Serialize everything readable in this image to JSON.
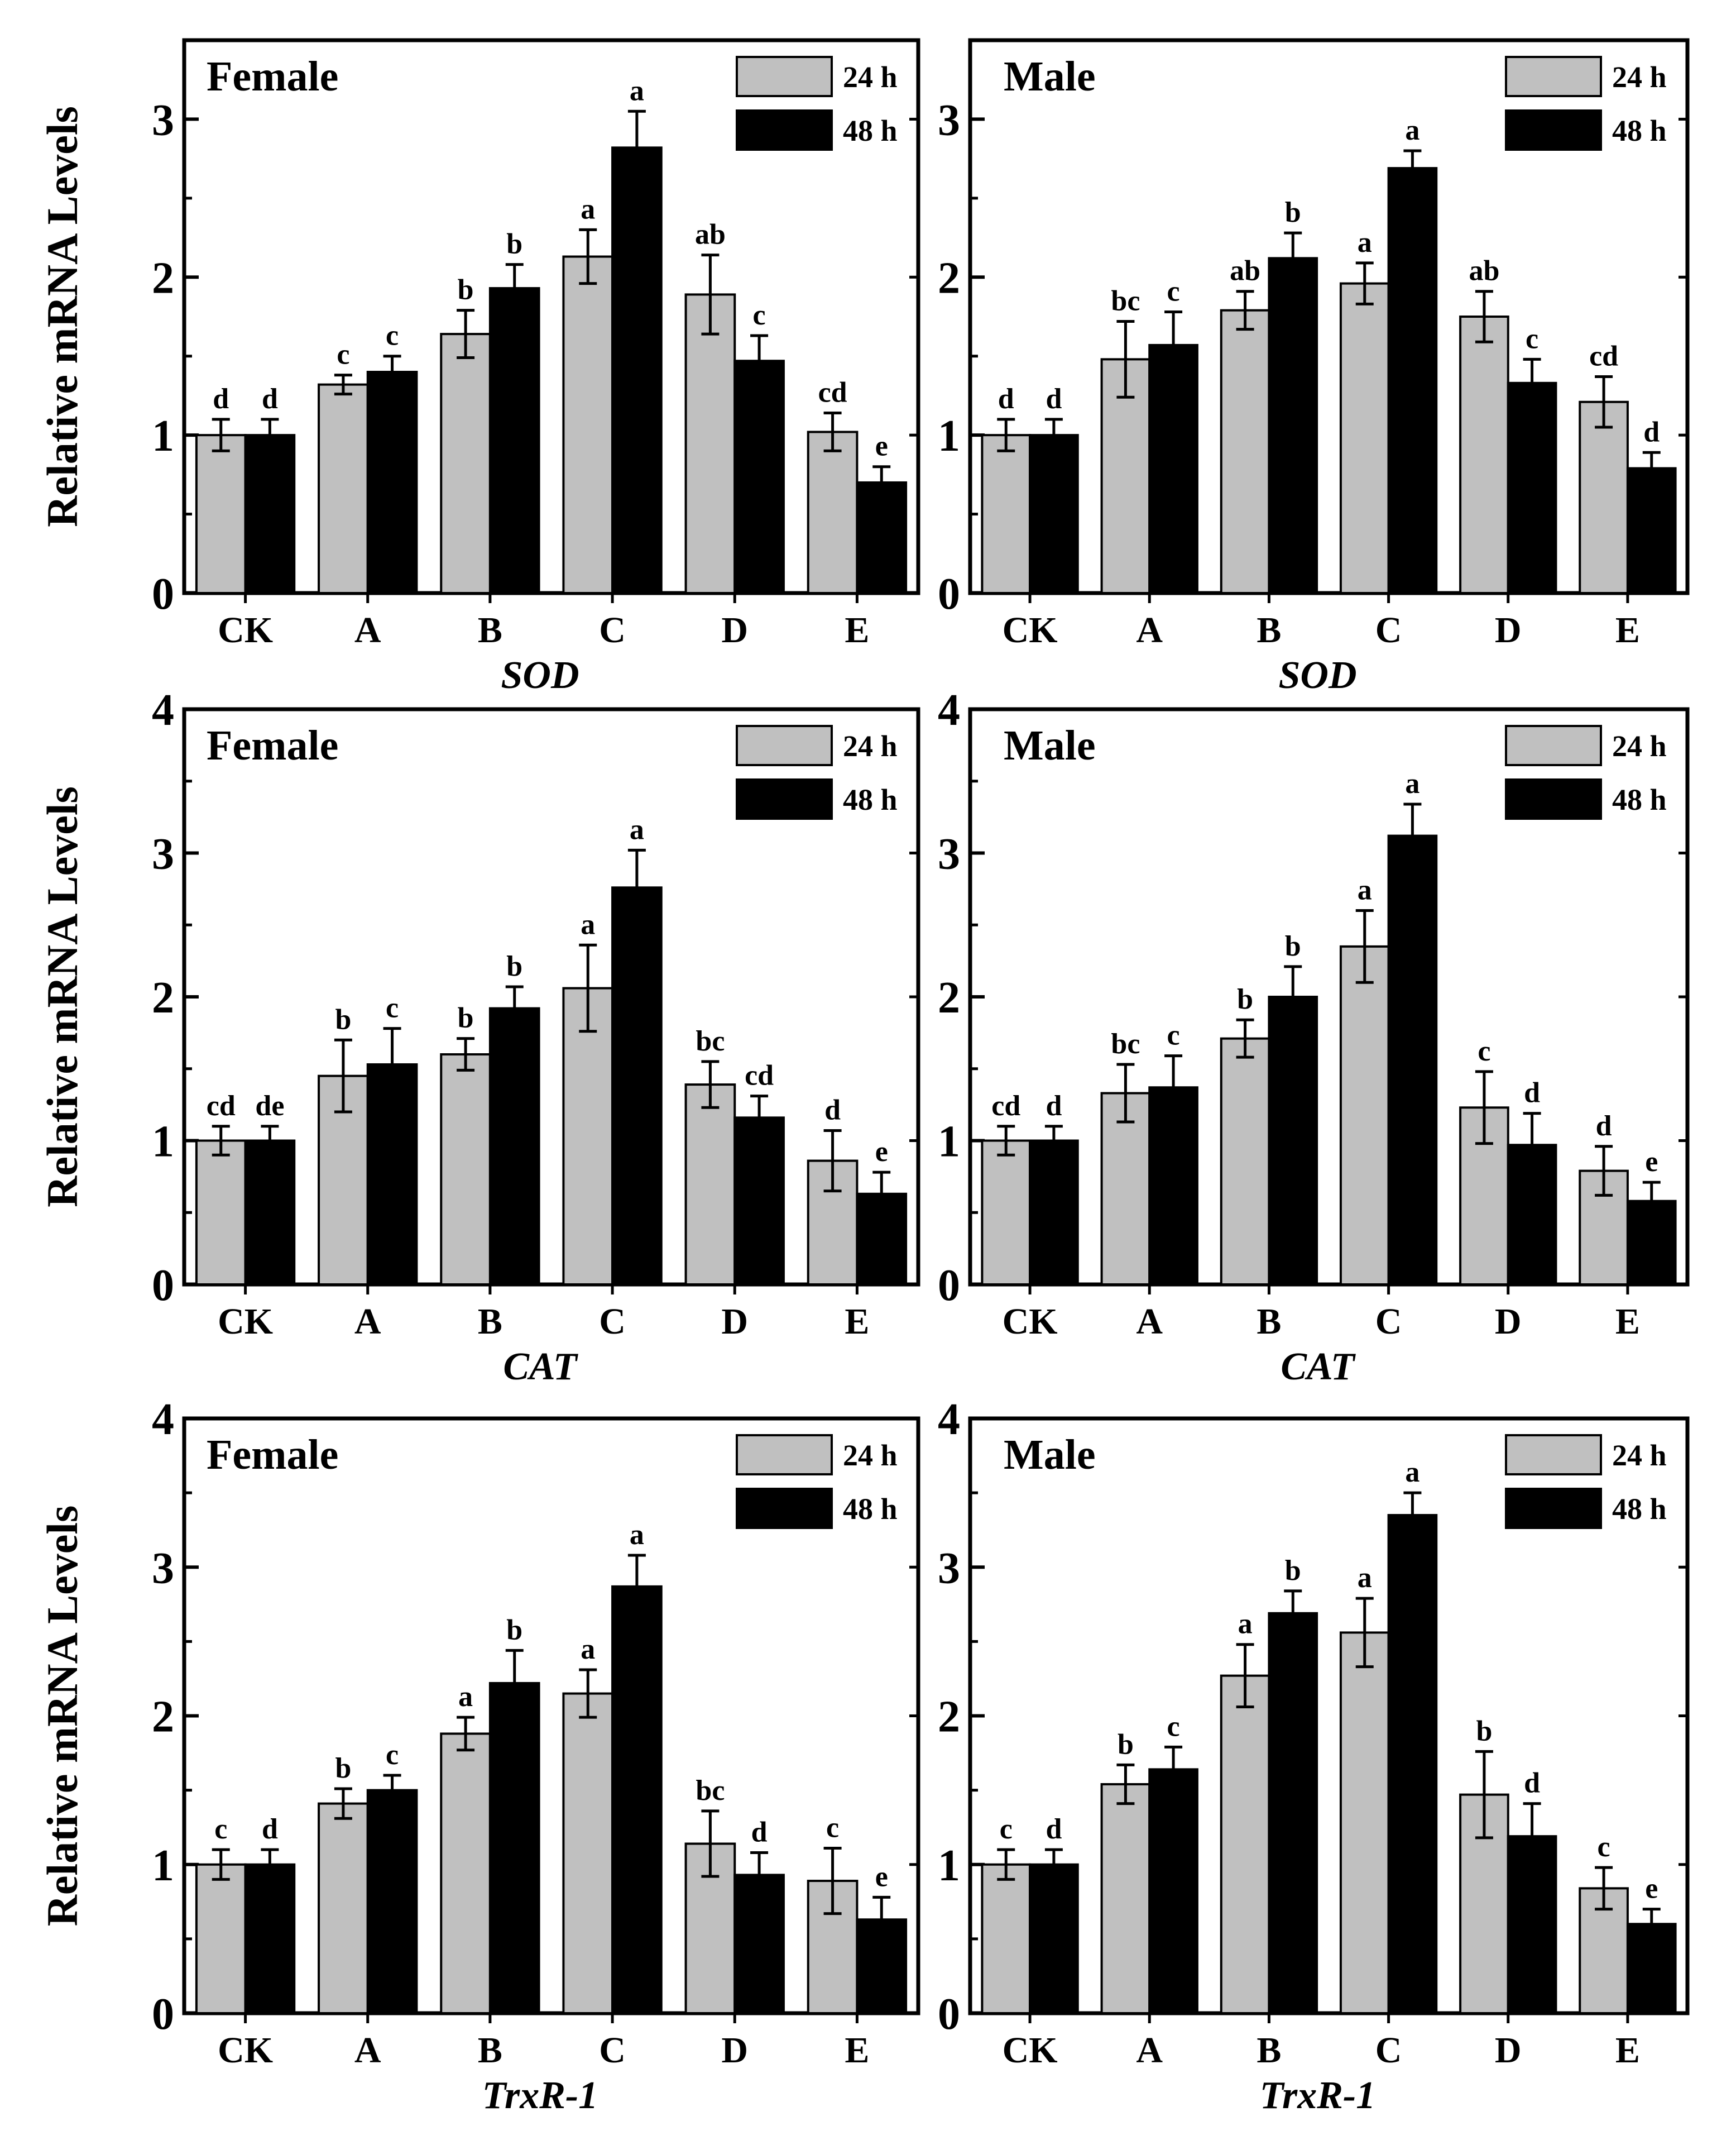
{
  "colors": {
    "h24": "#c0c0c0",
    "h48": "#000000",
    "frame": "#000000"
  },
  "y_axis_label": "Relative mRNA Levels",
  "legend": [
    "24 h",
    "48 h"
  ],
  "chart_data": [
    {
      "type": "bar",
      "title": "Female",
      "gene": "SOD",
      "xlabel": "SOD",
      "ylabel": "Relative mRNA Levels",
      "categories": [
        "CK",
        "A",
        "B",
        "C",
        "D",
        "E"
      ],
      "ylim": [
        0,
        3.5
      ],
      "yticks": [
        0,
        1,
        2,
        3
      ],
      "series": [
        {
          "name": "24 h",
          "values": [
            1.0,
            1.32,
            1.64,
            2.13,
            1.89,
            1.02
          ],
          "errors": [
            0.1,
            0.06,
            0.15,
            0.17,
            0.25,
            0.12
          ],
          "sig": [
            "d",
            "c",
            "b",
            "a",
            "ab",
            "cd"
          ]
        },
        {
          "name": "48 h",
          "values": [
            1.0,
            1.4,
            1.93,
            2.82,
            1.47,
            0.7
          ],
          "errors": [
            0.1,
            0.1,
            0.15,
            0.23,
            0.16,
            0.1
          ],
          "sig": [
            "d",
            "c",
            "b",
            "a",
            "c",
            "e"
          ]
        }
      ]
    },
    {
      "type": "bar",
      "title": "Male",
      "gene": "SOD",
      "xlabel": "SOD",
      "ylabel": "",
      "categories": [
        "CK",
        "A",
        "B",
        "C",
        "D",
        "E"
      ],
      "ylim": [
        0,
        3.5
      ],
      "yticks": [
        0,
        1,
        2,
        3
      ],
      "series": [
        {
          "name": "24 h",
          "values": [
            1.0,
            1.48,
            1.79,
            1.96,
            1.75,
            1.21
          ],
          "errors": [
            0.1,
            0.24,
            0.12,
            0.13,
            0.16,
            0.16
          ],
          "sig": [
            "d",
            "bc",
            "ab",
            "a",
            "ab",
            "cd"
          ]
        },
        {
          "name": "48 h",
          "values": [
            1.0,
            1.57,
            2.12,
            2.69,
            1.33,
            0.79
          ],
          "errors": [
            0.1,
            0.21,
            0.16,
            0.11,
            0.15,
            0.1
          ],
          "sig": [
            "d",
            "c",
            "b",
            "a",
            "c",
            "d"
          ]
        }
      ]
    },
    {
      "type": "bar",
      "title": "Female",
      "gene": "CAT",
      "xlabel": "CAT",
      "ylabel": "Relative mRNA Levels",
      "categories": [
        "CK",
        "A",
        "B",
        "C",
        "D",
        "E"
      ],
      "ylim": [
        0,
        4
      ],
      "yticks": [
        0,
        1,
        2,
        3,
        4
      ],
      "series": [
        {
          "name": "24 h",
          "values": [
            1.0,
            1.45,
            1.6,
            2.06,
            1.39,
            0.86
          ],
          "errors": [
            0.1,
            0.25,
            0.11,
            0.3,
            0.16,
            0.21
          ],
          "sig": [
            "cd",
            "b",
            "b",
            "a",
            "bc",
            "d"
          ]
        },
        {
          "name": "48 h",
          "values": [
            1.0,
            1.53,
            1.92,
            2.76,
            1.16,
            0.63
          ],
          "errors": [
            0.1,
            0.25,
            0.15,
            0.26,
            0.15,
            0.15
          ],
          "sig": [
            "de",
            "c",
            "b",
            "a",
            "cd",
            "e"
          ]
        }
      ]
    },
    {
      "type": "bar",
      "title": "Male",
      "gene": "CAT",
      "xlabel": "CAT",
      "ylabel": "",
      "categories": [
        "CK",
        "A",
        "B",
        "C",
        "D",
        "E"
      ],
      "ylim": [
        0,
        4
      ],
      "yticks": [
        0,
        1,
        2,
        3,
        4
      ],
      "series": [
        {
          "name": "24 h",
          "values": [
            1.0,
            1.33,
            1.71,
            2.35,
            1.23,
            0.79
          ],
          "errors": [
            0.1,
            0.2,
            0.13,
            0.25,
            0.25,
            0.17
          ],
          "sig": [
            "cd",
            "bc",
            "b",
            "a",
            "c",
            "d"
          ]
        },
        {
          "name": "48 h",
          "values": [
            1.0,
            1.37,
            2.0,
            3.12,
            0.97,
            0.58
          ],
          "errors": [
            0.1,
            0.22,
            0.21,
            0.22,
            0.22,
            0.13
          ],
          "sig": [
            "d",
            "c",
            "b",
            "a",
            "d",
            "e"
          ]
        }
      ]
    },
    {
      "type": "bar",
      "title": "Female",
      "gene": "TrxR-1",
      "xlabel": "TrxR-1",
      "ylabel": "Relative mRNA Levels",
      "categories": [
        "CK",
        "A",
        "B",
        "C",
        "D",
        "E"
      ],
      "ylim": [
        0,
        4
      ],
      "yticks": [
        0,
        1,
        2,
        3,
        4
      ],
      "series": [
        {
          "name": "24 h",
          "values": [
            1.0,
            1.41,
            1.88,
            2.15,
            1.14,
            0.89
          ],
          "errors": [
            0.1,
            0.1,
            0.11,
            0.16,
            0.22,
            0.22
          ],
          "sig": [
            "c",
            "b",
            "a",
            "a",
            "bc",
            "c"
          ]
        },
        {
          "name": "48 h",
          "values": [
            1.0,
            1.5,
            2.22,
            2.87,
            0.93,
            0.63
          ],
          "errors": [
            0.1,
            0.1,
            0.22,
            0.21,
            0.15,
            0.15
          ],
          "sig": [
            "d",
            "c",
            "b",
            "a",
            "d",
            "e"
          ]
        }
      ]
    },
    {
      "type": "bar",
      "title": "Male",
      "gene": "TrxR-1",
      "xlabel": "TrxR-1",
      "ylabel": "",
      "categories": [
        "CK",
        "A",
        "B",
        "C",
        "D",
        "E"
      ],
      "ylim": [
        0,
        4
      ],
      "yticks": [
        0,
        1,
        2,
        3,
        4
      ],
      "series": [
        {
          "name": "24 h",
          "values": [
            1.0,
            1.54,
            2.27,
            2.56,
            1.47,
            0.84
          ],
          "errors": [
            0.1,
            0.13,
            0.21,
            0.23,
            0.29,
            0.14
          ],
          "sig": [
            "c",
            "b",
            "a",
            "a",
            "b",
            "c"
          ]
        },
        {
          "name": "48 h",
          "values": [
            1.0,
            1.64,
            2.69,
            3.35,
            1.19,
            0.6
          ],
          "errors": [
            0.1,
            0.15,
            0.15,
            0.15,
            0.22,
            0.1
          ],
          "sig": [
            "d",
            "c",
            "b",
            "a",
            "d",
            "e"
          ]
        }
      ]
    }
  ]
}
